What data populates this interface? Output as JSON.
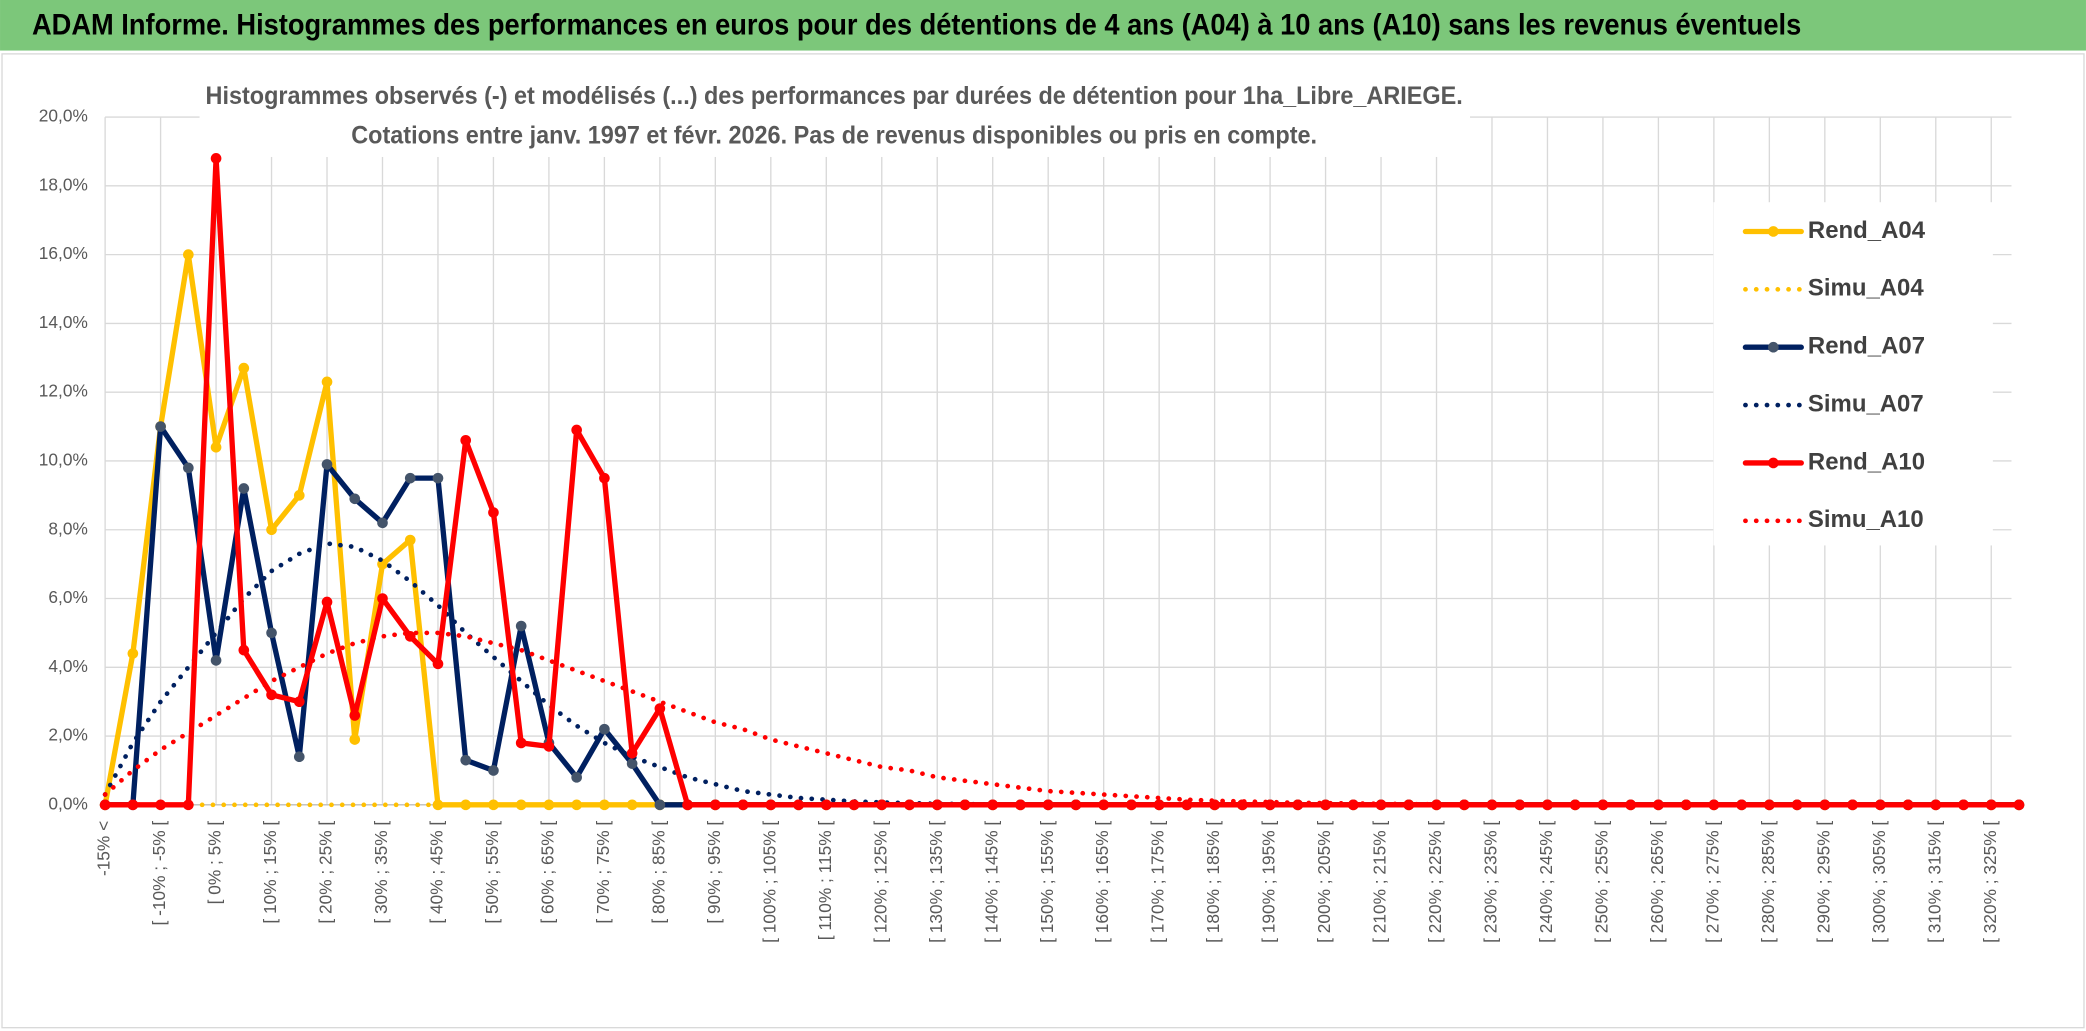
{
  "header": {
    "title": "ADAM Informe. Histogrammes des performances en euros pour des détentions de 4 ans (A04) à 10 ans (A10) sans les revenus éventuels"
  },
  "chart_data": {
    "type": "line",
    "title": "Histogrammes observés (-) et modélisés (...) des performances par durées de détention pour 1ha_Libre_ARIEGE.",
    "subtitle": "Cotations entre janv. 1997 et févr. 2026. Pas de revenus disponibles ou pris en compte.",
    "categories": [
      "-15% <",
      null,
      "[ -10% ; -5% [",
      null,
      "[ 0% ; 5% [",
      null,
      "[ 10% ; 15% [",
      null,
      "[ 20% ; 25% [",
      null,
      "[ 30% ; 35% [",
      null,
      "[ 40% ; 45% [",
      null,
      "[ 50% ; 55% [",
      null,
      "[ 60% ; 65% [",
      null,
      "[ 70% ; 75% [",
      null,
      "[ 80% ; 85% [",
      null,
      "[ 90% ; 95% [",
      null,
      "[ 100% ; 105% [",
      null,
      "[ 110% ; 115% [",
      null,
      "[ 120% ; 125% [",
      null,
      "[ 130% ; 135% [",
      null,
      "[ 140% ; 145% [",
      null,
      "[ 150% ; 155% [",
      null,
      "[ 160% ; 165% [",
      null,
      "[ 170% ; 175% [",
      null,
      "[ 180% ; 185% [",
      null,
      "[ 190% ; 195% [",
      null,
      "[ 200% ; 205% [",
      null,
      "[ 210% ; 215% [",
      null,
      "[ 220% ; 225% [",
      null,
      "[ 230% ; 235% [",
      null,
      "[ 240% ; 245% [",
      null,
      "[ 250% ; 255% [",
      null,
      "[ 260% ; 265% [",
      null,
      "[ 270% ; 275% [",
      null,
      "[ 280% ; 285% [",
      null,
      "[ 290% ; 295% [",
      null,
      "[ 300% ; 305% [",
      null,
      "[ 310% ; 315% [",
      null,
      "[ 320% ; 325% [",
      null
    ],
    "series": [
      {
        "name": "Rend_A04",
        "color": "#ffc000",
        "style": "solid",
        "markers": true,
        "marker_color": "#ffc000",
        "values": [
          0,
          4.4,
          11.0,
          16.0,
          10.4,
          12.7,
          8.0,
          9.0,
          12.3,
          1.9,
          7.0,
          7.7,
          0,
          0,
          0,
          0,
          0,
          0,
          0,
          0,
          0,
          0,
          0,
          0,
          0,
          0,
          0,
          0,
          0,
          0,
          0,
          0,
          0,
          0,
          0,
          0,
          0,
          0,
          0,
          0,
          0,
          0,
          0,
          0,
          0,
          0,
          0,
          0,
          0,
          0,
          0,
          0,
          0,
          0,
          0,
          0,
          0,
          0,
          0,
          0,
          0,
          0,
          0,
          0,
          0,
          0,
          0,
          0,
          0,
          0
        ]
      },
      {
        "name": "Simu_A04",
        "color": "#ffc000",
        "style": "dotted",
        "markers": false,
        "values": [
          0,
          0,
          0,
          0,
          0,
          0,
          0,
          0,
          0,
          0,
          0,
          0,
          0,
          0,
          0,
          0,
          0,
          0,
          0,
          0,
          0,
          0,
          0,
          0,
          0,
          0,
          0,
          0,
          0,
          0,
          0,
          0,
          0,
          0,
          0,
          0,
          0,
          0,
          0,
          0,
          0,
          0,
          0,
          0,
          0,
          0,
          0,
          0,
          0,
          0,
          0,
          0,
          0,
          0,
          0,
          0,
          0,
          0,
          0,
          0,
          0,
          0,
          0,
          0,
          0,
          0,
          0,
          0,
          0,
          0
        ]
      },
      {
        "name": "Rend_A07",
        "color": "#002060",
        "style": "solid",
        "markers": true,
        "marker_color": "#44546a",
        "values": [
          0,
          0,
          11.0,
          9.8,
          4.2,
          9.2,
          5.0,
          1.4,
          9.9,
          8.9,
          8.2,
          9.5,
          9.5,
          1.3,
          1.0,
          5.2,
          1.8,
          0.8,
          2.2,
          1.2,
          0,
          0,
          0,
          0,
          0,
          0,
          0,
          0,
          0,
          0,
          0,
          0,
          0,
          0,
          0,
          0,
          0,
          0,
          0,
          0,
          0,
          0,
          0,
          0,
          0,
          0,
          0,
          0,
          0,
          0,
          0,
          0,
          0,
          0,
          0,
          0,
          0,
          0,
          0,
          0,
          0,
          0,
          0,
          0,
          0,
          0,
          0,
          0,
          0,
          0
        ]
      },
      {
        "name": "Simu_A07",
        "color": "#002060",
        "style": "dotted",
        "markers": false,
        "values": [
          0.3,
          1.8,
          3.0,
          4.0,
          5.0,
          6.0,
          6.8,
          7.3,
          7.6,
          7.5,
          7.1,
          6.5,
          5.8,
          5.0,
          4.3,
          3.6,
          2.9,
          2.3,
          1.8,
          1.4,
          1.1,
          0.8,
          0.6,
          0.4,
          0.3,
          0.2,
          0.15,
          0.1,
          0.07,
          0.05,
          0.03,
          0.02,
          0.01,
          0,
          0,
          0,
          0,
          0,
          0,
          0,
          0,
          0,
          0,
          0,
          0,
          0,
          0,
          0,
          0,
          0,
          0,
          0,
          0,
          0,
          0,
          0,
          0,
          0,
          0,
          0,
          0,
          0,
          0,
          0,
          0,
          0,
          0,
          0,
          0,
          0
        ]
      },
      {
        "name": "Rend_A10",
        "color": "#ff0000",
        "style": "solid",
        "markers": true,
        "marker_color": "#ff0000",
        "values": [
          0,
          0,
          0,
          0,
          18.8,
          4.5,
          3.2,
          3.0,
          5.9,
          2.6,
          6.0,
          4.9,
          4.1,
          10.6,
          8.5,
          1.8,
          1.7,
          10.9,
          9.5,
          1.5,
          2.8,
          0,
          0,
          0,
          0,
          0,
          0,
          0,
          0,
          0,
          0,
          0,
          0,
          0,
          0,
          0,
          0,
          0,
          0,
          0,
          0,
          0,
          0,
          0,
          0,
          0,
          0,
          0,
          0,
          0,
          0,
          0,
          0,
          0,
          0,
          0,
          0,
          0,
          0,
          0,
          0,
          0,
          0,
          0,
          0,
          0,
          0,
          0,
          0,
          0
        ]
      },
      {
        "name": "Simu_A10",
        "color": "#ff0000",
        "style": "dotted",
        "markers": false,
        "values": [
          0.3,
          1.0,
          1.6,
          2.1,
          2.6,
          3.1,
          3.6,
          4.0,
          4.4,
          4.7,
          4.9,
          5.0,
          5.0,
          4.9,
          4.7,
          4.5,
          4.2,
          3.9,
          3.6,
          3.3,
          3.0,
          2.7,
          2.4,
          2.2,
          1.9,
          1.7,
          1.5,
          1.3,
          1.1,
          1.0,
          0.8,
          0.7,
          0.6,
          0.5,
          0.4,
          0.35,
          0.3,
          0.25,
          0.2,
          0.15,
          0.12,
          0.1,
          0.08,
          0.06,
          0.05,
          0.04,
          0.03,
          0.02,
          0.02,
          0.01,
          0,
          0,
          0,
          0,
          0,
          0,
          0,
          0,
          0,
          0,
          0,
          0,
          0,
          0,
          0,
          0,
          0,
          0,
          0,
          0
        ]
      }
    ],
    "ylim": [
      0,
      20
    ],
    "yticks": [
      {
        "value": 0,
        "label": "0,0%"
      },
      {
        "value": 2,
        "label": "2,0%"
      },
      {
        "value": 4,
        "label": "4,0%"
      },
      {
        "value": 6,
        "label": "6,0%"
      },
      {
        "value": 8,
        "label": "8,0%"
      },
      {
        "value": 10,
        "label": "10,0%"
      },
      {
        "value": 12,
        "label": "12,0%"
      },
      {
        "value": 14,
        "label": "14,0%"
      },
      {
        "value": 16,
        "label": "16,0%"
      },
      {
        "value": 18,
        "label": "18,0%"
      },
      {
        "value": 20,
        "label": "20,0%"
      }
    ],
    "grid": true,
    "legend": "right"
  }
}
